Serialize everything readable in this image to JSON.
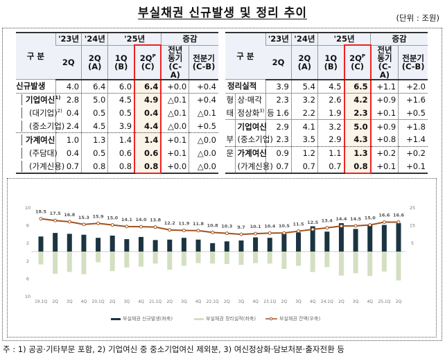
{
  "title": "부실채권 신규발생 및 정리 추이",
  "unit": "(단위 : 조원)",
  "headers": {
    "category": "구  분",
    "y23": "'23년",
    "y24": "'24년",
    "y25": "'25년",
    "change": "증감",
    "q2": "2Q",
    "q2a": "2Q\n(A)",
    "q1b": "1Q\n(B)",
    "q2c": "2Q",
    "q2c_sup": "P",
    "q2c_sub": "(C)",
    "yoy": "전년\n동기\n(C-A)",
    "qoq": "전분기\n(C-B)"
  },
  "left_table": {
    "rows": [
      {
        "label": "신규발생",
        "sup": "",
        "values": [
          "4.0",
          "6.4",
          "6.0",
          "6.4",
          "+0.0",
          "+0.4"
        ],
        "bold": true,
        "level": 0
      },
      {
        "label": "기업여신",
        "sup": "1)",
        "values": [
          "2.8",
          "5.0",
          "4.5",
          "4.9",
          "△0.1",
          "+0.4"
        ],
        "bold": true,
        "level": 1
      },
      {
        "label": "(대기업)",
        "sup": "2)",
        "values": [
          "0.4",
          "0.5",
          "0.5",
          "0.4",
          "△0.1",
          "△0.1"
        ],
        "bold": false,
        "level": 2
      },
      {
        "label": "(중소기업)",
        "sup": "",
        "values": [
          "2.4",
          "4.5",
          "3.9",
          "4.4",
          "△0.0",
          "+0.5"
        ],
        "bold": false,
        "level": 2
      },
      {
        "label": "가계여신",
        "sup": "",
        "values": [
          "1.0",
          "1.3",
          "1.4",
          "1.4",
          "+0.1",
          "△0.0"
        ],
        "bold": true,
        "level": 1
      },
      {
        "label": "(주담대)",
        "sup": "",
        "values": [
          "0.4",
          "0.5",
          "0.6",
          "0.6",
          "+0.1",
          "△0.0"
        ],
        "bold": false,
        "level": 2
      },
      {
        "label": "(가계신용)",
        "sup": "",
        "values": [
          "0.7",
          "0.8",
          "0.8",
          "0.8",
          "+0.0",
          "△0.0"
        ],
        "bold": false,
        "level": 2
      }
    ]
  },
  "right_table": {
    "rows": [
      {
        "side": "",
        "label": "정리실적",
        "sup": "",
        "values": [
          "3.9",
          "5.4",
          "4.5",
          "6.5",
          "+1.1",
          "+2.0"
        ],
        "bold": true
      },
      {
        "side": "형",
        "label": "상·매각",
        "sup": "",
        "values": [
          "2.3",
          "3.2",
          "2.6",
          "4.2",
          "+0.9",
          "+1.6"
        ],
        "bold": false
      },
      {
        "side": "태",
        "label": "정상화",
        "sup": "3)",
        "label_tail": " 등",
        "values": [
          "1.6",
          "2.2",
          "1.9",
          "2.3",
          "+0.1",
          "+0.5"
        ],
        "bold": false
      },
      {
        "side": "",
        "label": "기업여신",
        "sup": "",
        "values": [
          "2.9",
          "4.1",
          "3.2",
          "5.0",
          "+0.9",
          "+1.8"
        ],
        "bold": true
      },
      {
        "side": "부",
        "label": "(중소기업)",
        "sup": "",
        "values": [
          "2.3",
          "3.5",
          "2.9",
          "4.3",
          "+0.8",
          "+1.4"
        ],
        "bold": false
      },
      {
        "side": "문",
        "label": "가계여신",
        "sup": "",
        "values": [
          "0.9",
          "1.2",
          "1.1",
          "1.3",
          "+0.2",
          "+0.2"
        ],
        "bold": true
      },
      {
        "side": "",
        "label": "(가계신용)",
        "sup": "",
        "values": [
          "0.7",
          "0.7",
          "0.7",
          "0.8",
          "+0.1",
          "+0.1"
        ],
        "bold": false
      }
    ]
  },
  "chart_data": {
    "type": "bar+line",
    "categories": [
      "19.1Q",
      "2Q",
      "3Q",
      "4Q",
      "20.1Q",
      "2Q",
      "3Q",
      "4Q",
      "21.1Q",
      "2Q",
      "3Q",
      "4Q",
      "22.1Q",
      "2Q",
      "3Q",
      "4Q",
      "23.1Q",
      "2Q",
      "3Q",
      "4Q",
      "24.1Q",
      "2Q",
      "3Q",
      "4Q",
      "25.1Q",
      "2Q"
    ],
    "series": [
      {
        "name": "부실채권 신규발생(좌축)",
        "type": "bar",
        "axis": "left",
        "color": "#1b3442",
        "values": [
          3.4,
          4.2,
          4.0,
          3.8,
          3.1,
          3.6,
          2.8,
          3.3,
          2.6,
          2.7,
          3.1,
          2.7,
          1.9,
          2.3,
          2.5,
          3.2,
          3.1,
          4.0,
          4.3,
          5.7,
          4.5,
          6.4,
          5.1,
          6.0,
          6.0,
          6.4
        ]
      },
      {
        "name": "부실채권 정리실적(좌축)",
        "type": "bar",
        "axis": "left",
        "direction": "down",
        "color": "#d3dfc0",
        "values": [
          2.9,
          5.0,
          4.6,
          5.1,
          2.4,
          4.4,
          3.6,
          3.4,
          2.7,
          4.1,
          3.2,
          2.6,
          2.7,
          2.8,
          3.0,
          2.6,
          2.7,
          3.9,
          3.2,
          4.6,
          3.5,
          5.4,
          4.9,
          5.5,
          4.5,
          6.5
        ]
      },
      {
        "name": "부실채권 잔액(우축)",
        "type": "line",
        "axis": "right",
        "color": "#a0501e",
        "values": [
          18.5,
          17.5,
          16.8,
          15.3,
          15.9,
          15.0,
          14.1,
          14.0,
          13.8,
          12.2,
          11.9,
          11.8,
          10.8,
          10.3,
          9.7,
          10.1,
          10.4,
          10.5,
          11.5,
          12.5,
          13.4,
          14.4,
          14.5,
          15.0,
          16.6,
          16.6
        ]
      }
    ],
    "left_ticks": [
      "10",
      "6",
      "2",
      "2",
      "6",
      "10"
    ],
    "right_ticks": [
      "25",
      "15",
      "5"
    ],
    "ylim_left": [
      -10,
      10
    ],
    "ylim_right": [
      -25,
      25
    ],
    "legend_position": "bottom"
  },
  "footnote": "주 : 1) 공공·기타부문 포함, 2) 기업여신 중 중소기업여신 제외분, 3) 여신정상화·담보처분·출자전환 등"
}
